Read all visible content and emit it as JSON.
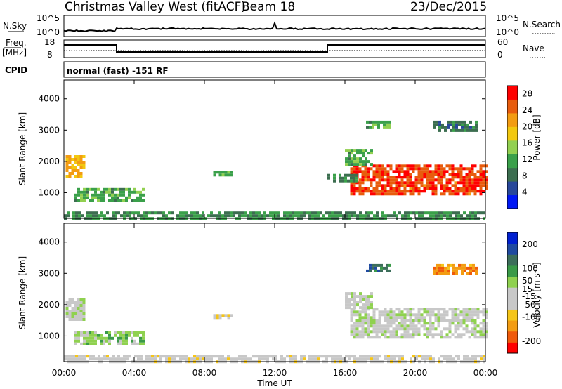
{
  "header": {
    "title": "Christmas Valley West (fitACF)",
    "beam": "Beam 18",
    "date": "23/Dec/2015"
  },
  "side_labels": {
    "nsky": "N.Sky",
    "freq_top": "Freq.",
    "freq_unit": "[MHz]",
    "cpid": "CPID",
    "nsearch": "N.Search",
    "nave": "Nave",
    "cpid_text": "normal (fast) -151 RF"
  },
  "strip_ticks": {
    "nsky": [
      "10^5",
      "10^0"
    ],
    "nsearch": [
      "10^5",
      "10^0"
    ],
    "freq": [
      "18",
      "8"
    ],
    "nave": [
      "60",
      "0"
    ]
  },
  "colors": {
    "power": [
      "#0018f5",
      "#28489a",
      "#3c6e50",
      "#3aa04a",
      "#92d050",
      "#f2c80f",
      "#f39c12",
      "#e85c0d",
      "#ff0000"
    ],
    "velocity": [
      "#ff0000",
      "#f05a0a",
      "#f39c12",
      "#f5c518",
      "#c8c8c8",
      "#c8c8c8",
      "#8fd14f",
      "#3a9a48",
      "#3c6e5a",
      "#1f4aa0",
      "#0020d0"
    ],
    "ground": "#c0c0c0"
  },
  "chart_data": [
    {
      "type": "heatmap",
      "panel": "power",
      "xlabel": "Time UT",
      "ylabel": "Slant Range [km]",
      "x_ticks": [
        "00:00",
        "04:00",
        "08:00",
        "12:00",
        "16:00",
        "20:00",
        "00:00"
      ],
      "y_ticks": [
        1000,
        2000,
        3000,
        4000
      ],
      "xlim_hours": [
        0,
        24
      ],
      "ylim_km": [
        180,
        4600
      ],
      "colorbar": {
        "label": "Power [dB]",
        "ticks": [
          4,
          8,
          12,
          16,
          20,
          24,
          28
        ],
        "range": [
          0,
          30
        ]
      },
      "regions": [
        {
          "t": [
            0.1,
            1.2
          ],
          "r": [
            1500,
            2200
          ],
          "value": 20
        },
        {
          "t": [
            0.6,
            4.5
          ],
          "r": [
            750,
            1150
          ],
          "value": 12
        },
        {
          "t": [
            16.3,
            24.0
          ],
          "r": [
            1000,
            1900
          ],
          "value": 26
        },
        {
          "t": [
            16.0,
            17.5
          ],
          "r": [
            1900,
            2400
          ],
          "value": 12
        },
        {
          "t": [
            15.0,
            16.6
          ],
          "r": [
            1350,
            1600
          ],
          "value": 10
        },
        {
          "t": [
            8.5,
            9.6
          ],
          "r": [
            1550,
            1700
          ],
          "value": 12
        },
        {
          "t": [
            0.0,
            24.0
          ],
          "r": [
            180,
            400
          ],
          "value": 10
        },
        {
          "t": [
            17.2,
            18.5
          ],
          "r": [
            3050,
            3300
          ],
          "value": 12
        },
        {
          "t": [
            21.0,
            23.5
          ],
          "r": [
            3000,
            3300
          ],
          "value": 8
        }
      ]
    },
    {
      "type": "heatmap",
      "panel": "velocity",
      "xlabel": "Time UT",
      "ylabel": "Slant Range [km]",
      "x_ticks": [
        "00:00",
        "04:00",
        "08:00",
        "12:00",
        "16:00",
        "20:00",
        "00:00"
      ],
      "y_ticks": [
        1000,
        2000,
        3000,
        4000
      ],
      "xlim_hours": [
        0,
        24
      ],
      "ylim_km": [
        180,
        4600
      ],
      "colorbar": {
        "label": "Velocity [m s⁻¹]",
        "ticks": [
          -200,
          -100,
          -50,
          -15,
          15,
          50,
          100,
          200
        ],
        "range": [
          -250,
          250
        ]
      },
      "regions": [
        {
          "t": [
            0.1,
            1.2
          ],
          "r": [
            1500,
            2200
          ],
          "value": 0
        },
        {
          "t": [
            0.6,
            4.5
          ],
          "r": [
            750,
            1150
          ],
          "value": 40
        },
        {
          "t": [
            16.3,
            24.0
          ],
          "r": [
            1000,
            1900
          ],
          "value": 0
        },
        {
          "t": [
            16.0,
            17.5
          ],
          "r": [
            1900,
            2400
          ],
          "value": 0
        },
        {
          "t": [
            8.5,
            9.6
          ],
          "r": [
            1550,
            1700
          ],
          "value": -60
        },
        {
          "t": [
            0.0,
            24.0
          ],
          "r": [
            180,
            400
          ],
          "value": -30
        },
        {
          "t": [
            17.2,
            18.5
          ],
          "r": [
            3050,
            3300
          ],
          "value": 150
        },
        {
          "t": [
            21.0,
            23.5
          ],
          "r": [
            3000,
            3300
          ],
          "value": -150
        }
      ]
    }
  ]
}
